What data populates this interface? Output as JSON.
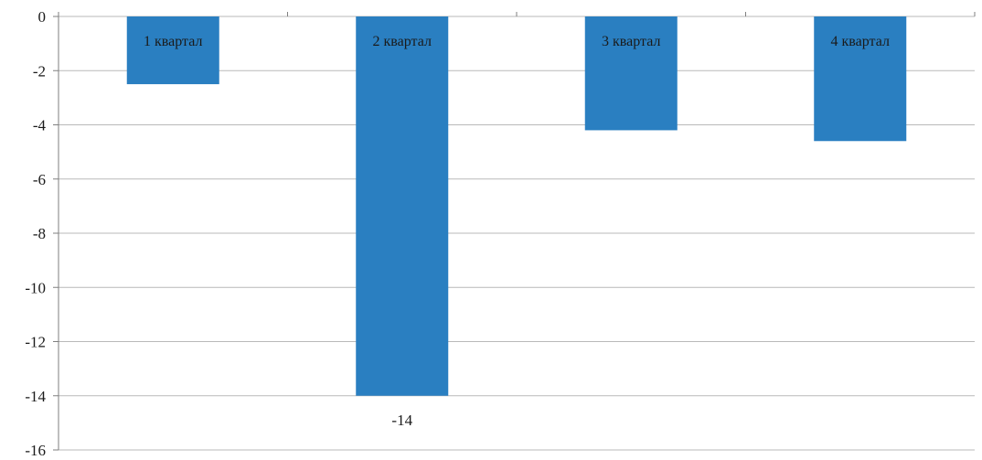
{
  "chart_data": {
    "type": "bar",
    "categories": [
      "1 квартал",
      "2 квартал",
      "3 квартал",
      "4 квартал"
    ],
    "values": [
      -2.5,
      -14,
      -4.2,
      -4.6
    ],
    "data_labels": [
      "",
      "-14",
      "",
      ""
    ],
    "title": "",
    "xlabel": "",
    "ylabel": "",
    "ylim": [
      -16,
      0
    ],
    "yticks": [
      0,
      -2,
      -4,
      -6,
      -8,
      -10,
      -12,
      -14,
      -16
    ],
    "ytick_labels": [
      "0",
      "-2",
      "-4",
      "-6",
      "-8",
      "-10",
      "-12",
      "-14",
      "-16"
    ],
    "grid": true,
    "legend": "none",
    "bar_color": "#2a7fc1",
    "grid_color": "#b9b9b9"
  }
}
